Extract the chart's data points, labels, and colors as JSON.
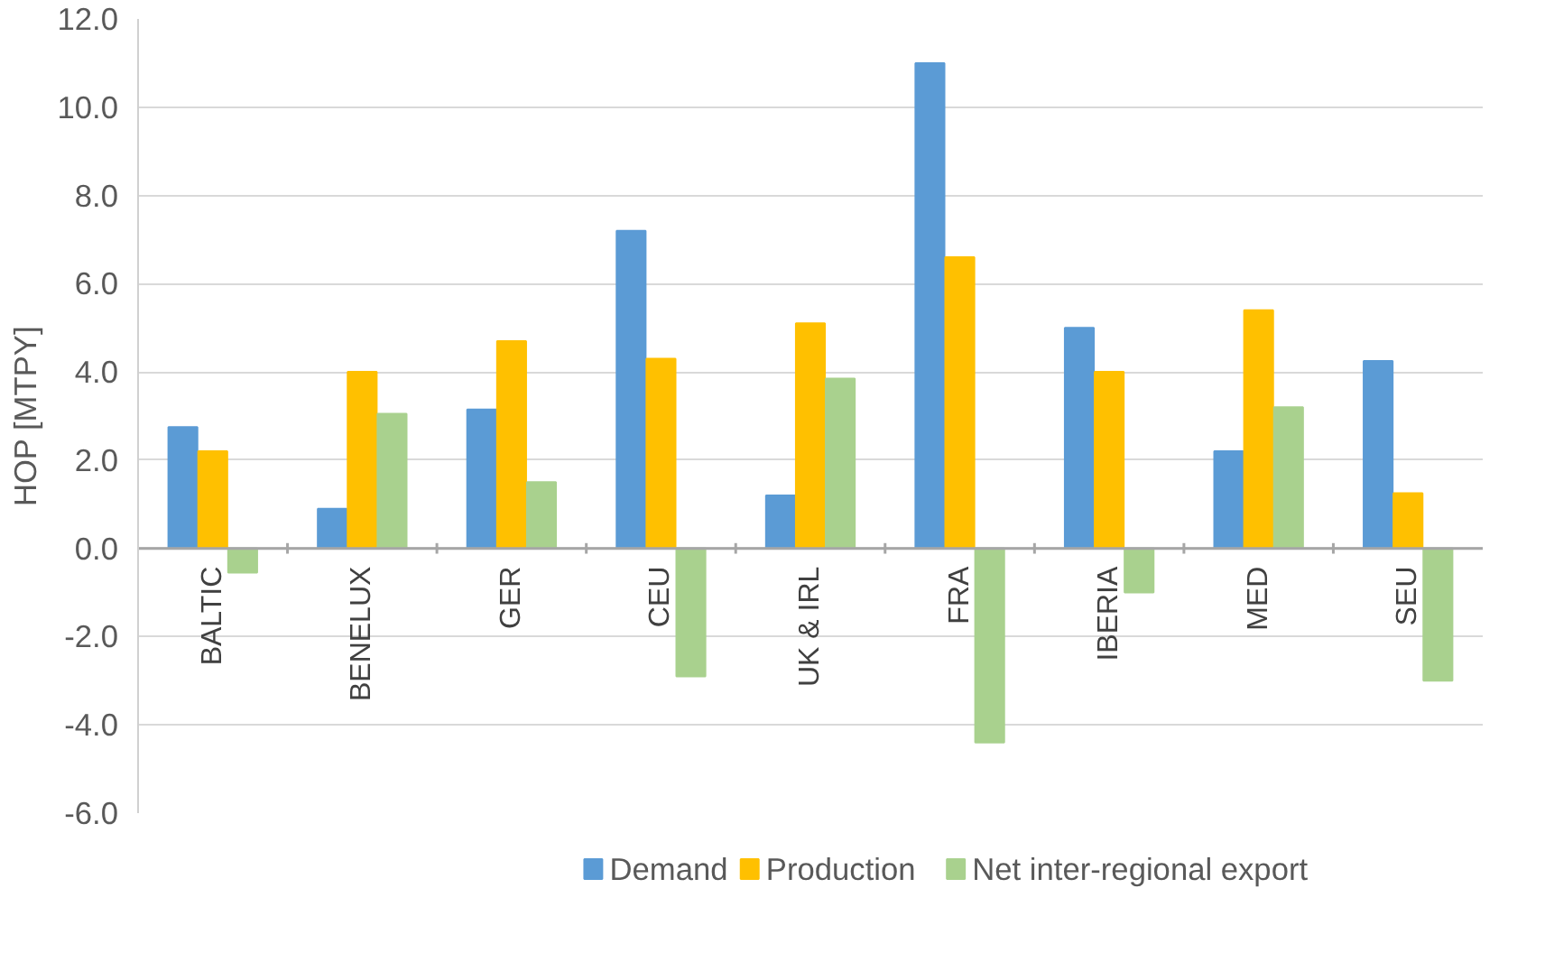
{
  "chart_data": {
    "type": "bar",
    "ylabel": "HOP [MTPY]",
    "categories": [
      "BALTIC",
      "BENELUX",
      "GER",
      "CEU",
      "UK & IRL",
      "FRA",
      "IBERIA",
      "MED",
      "SEU"
    ],
    "series": [
      {
        "name": "Demand",
        "color": "#5b9bd5",
        "values": [
          2.75,
          0.9,
          3.15,
          7.2,
          1.2,
          11.0,
          5.0,
          2.2,
          4.25
        ]
      },
      {
        "name": "Production",
        "color": "#ffc000",
        "values": [
          2.2,
          4.0,
          4.7,
          4.3,
          5.1,
          6.6,
          4.0,
          5.4,
          1.25
        ]
      },
      {
        "name": "Net inter-regional export",
        "color": "#a9d18e",
        "values": [
          -0.55,
          3.05,
          1.5,
          -2.9,
          3.85,
          -4.4,
          -1.0,
          3.2,
          -3.0
        ]
      }
    ],
    "ylim": [
      -6.0,
      12.0
    ],
    "yticks": [
      {
        "value": -6,
        "label": "-6.0"
      },
      {
        "value": -4,
        "label": "-4.0"
      },
      {
        "value": -2,
        "label": "-2.0"
      },
      {
        "value": 0,
        "label": "0.0"
      },
      {
        "value": 2,
        "label": "2.0"
      },
      {
        "value": 4,
        "label": "4.0"
      },
      {
        "value": 6,
        "label": "6.0"
      },
      {
        "value": 8,
        "label": "8.0"
      },
      {
        "value": 10,
        "label": "10.0"
      },
      {
        "value": 12,
        "label": "12.0"
      }
    ],
    "grid": "y",
    "legend": "bottom"
  }
}
